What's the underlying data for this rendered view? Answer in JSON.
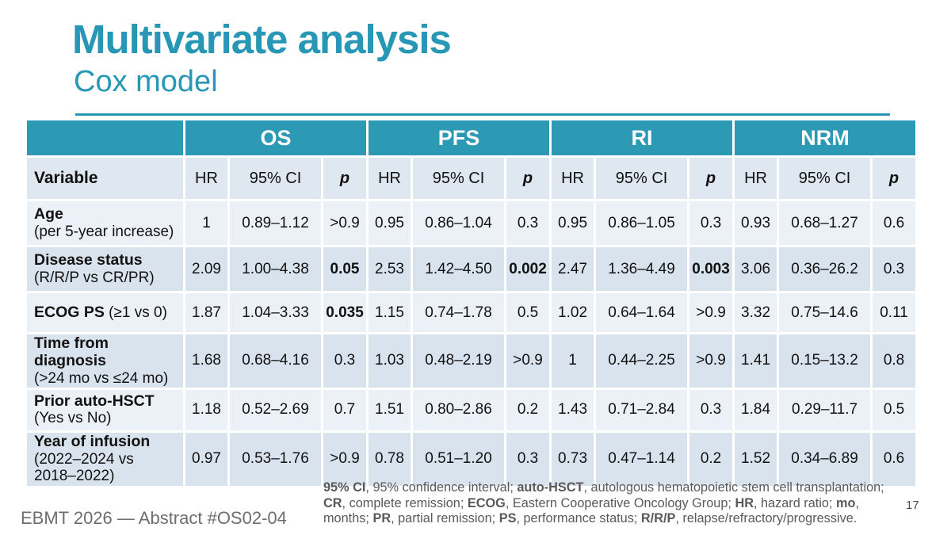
{
  "slide": {
    "title": "Multivariate analysis",
    "subtitle": "Cox model",
    "footer_left": "EBMT 2026 — Abstract #OS02-04",
    "page_number": "17"
  },
  "colors": {
    "accent_teal": "#2c99b5",
    "row_light": "#ecf1f7",
    "row_dark": "#d9e3ee",
    "subheader_bg": "#dfe7f0",
    "footnote_gray": "#595959"
  },
  "table": {
    "groups": [
      "OS",
      "PFS",
      "RI",
      "NRM"
    ],
    "variable_header": "Variable",
    "sub_headers": [
      "HR",
      "95% CI",
      "p"
    ],
    "rows": [
      {
        "label": "Age",
        "sublabel": "(per 5-year increase)",
        "inline": false,
        "cells": [
          {
            "hr": "1",
            "ci": "0.89–1.12",
            "p": ">0.9",
            "p_bold": false
          },
          {
            "hr": "0.95",
            "ci": "0.86–1.04",
            "p": "0.3",
            "p_bold": false
          },
          {
            "hr": "0.95",
            "ci": "0.86–1.05",
            "p": "0.3",
            "p_bold": false
          },
          {
            "hr": "0.93",
            "ci": "0.68–1.27",
            "p": "0.6",
            "p_bold": false
          }
        ]
      },
      {
        "label": "Disease status",
        "sublabel": "(R/R/P vs CR/PR)",
        "inline": false,
        "cells": [
          {
            "hr": "2.09",
            "ci": "1.00–4.38",
            "p": "0.05",
            "p_bold": true
          },
          {
            "hr": "2.53",
            "ci": "1.42–4.50",
            "p": "0.002",
            "p_bold": true
          },
          {
            "hr": "2.47",
            "ci": "1.36–4.49",
            "p": "0.003",
            "p_bold": true
          },
          {
            "hr": "3.06",
            "ci": "0.36–26.2",
            "p": "0.3",
            "p_bold": false
          }
        ]
      },
      {
        "label": "ECOG PS",
        "sublabel": "(≥1 vs 0)",
        "inline": true,
        "cells": [
          {
            "hr": "1.87",
            "ci": "1.04–3.33",
            "p": "0.035",
            "p_bold": true
          },
          {
            "hr": "1.15",
            "ci": "0.74–1.78",
            "p": "0.5",
            "p_bold": false
          },
          {
            "hr": "1.02",
            "ci": "0.64–1.64",
            "p": ">0.9",
            "p_bold": false
          },
          {
            "hr": "3.32",
            "ci": "0.75–14.6",
            "p": "0.11",
            "p_bold": false
          }
        ]
      },
      {
        "label": "Time from diagnosis",
        "sublabel": "(>24 mo vs ≤24 mo)",
        "inline": false,
        "cells": [
          {
            "hr": "1.68",
            "ci": "0.68–4.16",
            "p": "0.3",
            "p_bold": false
          },
          {
            "hr": "1.03",
            "ci": "0.48–2.19",
            "p": ">0.9",
            "p_bold": false
          },
          {
            "hr": "1",
            "ci": "0.44–2.25",
            "p": ">0.9",
            "p_bold": false
          },
          {
            "hr": "1.41",
            "ci": "0.15–13.2",
            "p": "0.8",
            "p_bold": false
          }
        ]
      },
      {
        "label": "Prior auto-HSCT",
        "sublabel": "(Yes vs No)",
        "inline": false,
        "cells": [
          {
            "hr": "1.18",
            "ci": "0.52–2.69",
            "p": "0.7",
            "p_bold": false
          },
          {
            "hr": "1.51",
            "ci": "0.80–2.86",
            "p": "0.2",
            "p_bold": false
          },
          {
            "hr": "1.43",
            "ci": "0.71–2.84",
            "p": "0.3",
            "p_bold": false
          },
          {
            "hr": "1.84",
            "ci": "0.29–11.7",
            "p": "0.5",
            "p_bold": false
          }
        ]
      },
      {
        "label": "Year of infusion",
        "sublabel": "(2022–2024 vs\n 2018–2022)",
        "inline": false,
        "cells": [
          {
            "hr": "0.97",
            "ci": "0.53–1.76",
            "p": ">0.9",
            "p_bold": false
          },
          {
            "hr": "0.78",
            "ci": "0.51–1.20",
            "p": "0.3",
            "p_bold": false
          },
          {
            "hr": "0.73",
            "ci": "0.47–1.14",
            "p": "0.2",
            "p_bold": false
          },
          {
            "hr": "1.52",
            "ci": "0.34–6.89",
            "p": "0.6",
            "p_bold": false
          }
        ]
      }
    ]
  },
  "footnote": {
    "segments": [
      {
        "text": "95% CI",
        "bold": true
      },
      {
        "text": ", 95% confidence interval; ",
        "bold": false
      },
      {
        "text": "auto-HSCT",
        "bold": true
      },
      {
        "text": ", autologous hematopoietic stem cell transplantation; ",
        "bold": false
      },
      {
        "text": "CR",
        "bold": true
      },
      {
        "text": ", complete remission; ",
        "bold": false
      },
      {
        "text": "ECOG",
        "bold": true
      },
      {
        "text": ", Eastern Cooperative Oncology Group; ",
        "bold": false
      },
      {
        "text": "HR",
        "bold": true
      },
      {
        "text": ", hazard ratio; ",
        "bold": false
      },
      {
        "text": "mo",
        "bold": true
      },
      {
        "text": ", months; ",
        "bold": false
      },
      {
        "text": "PR",
        "bold": true
      },
      {
        "text": ", partial remission; ",
        "bold": false
      },
      {
        "text": "PS",
        "bold": true
      },
      {
        "text": ", performance status; ",
        "bold": false
      },
      {
        "text": "R/R/P",
        "bold": true
      },
      {
        "text": ", relapse/refractory/progressive.",
        "bold": false
      }
    ]
  }
}
